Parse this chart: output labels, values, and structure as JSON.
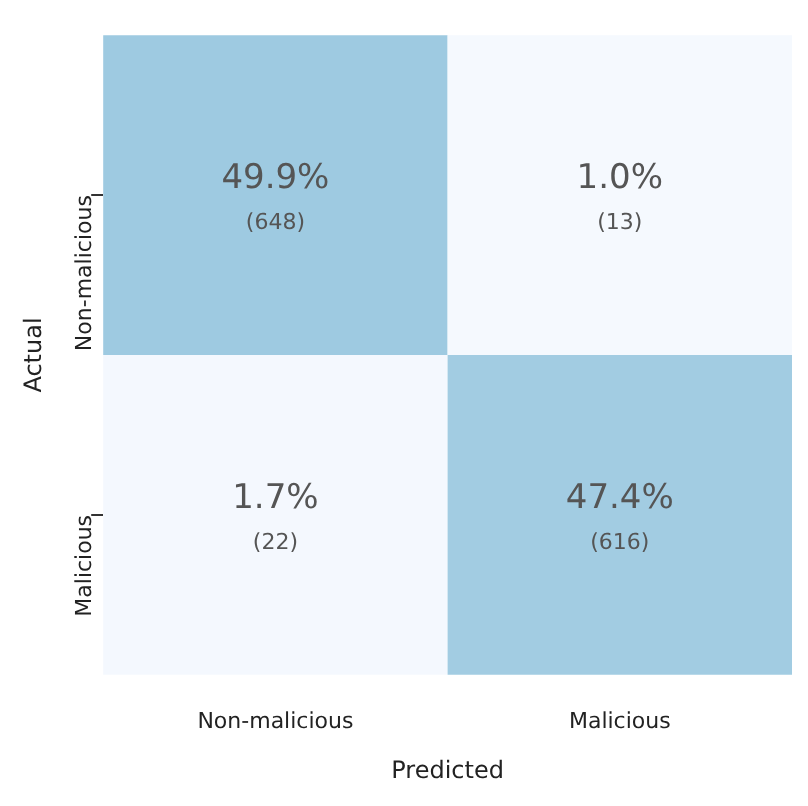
{
  "chart_data": {
    "type": "heatmap",
    "xlabel": "Predicted",
    "ylabel": "Actual",
    "categories": [
      "Non-malicious",
      "Malicious"
    ],
    "y_categories": [
      "Non-malicious",
      "Malicious"
    ],
    "cells": [
      [
        49.9,
        1.0
      ],
      [
        1.7,
        47.4
      ]
    ],
    "cell_labels": [
      [
        "49.9%",
        "1.0%"
      ],
      [
        "1.7%",
        "47.4%"
      ]
    ],
    "annotations": [
      "(648)",
      "(13)",
      "(22)",
      "(616)"
    ],
    "colors": [
      "#f5f9fe",
      "#9ecae1"
    ]
  }
}
